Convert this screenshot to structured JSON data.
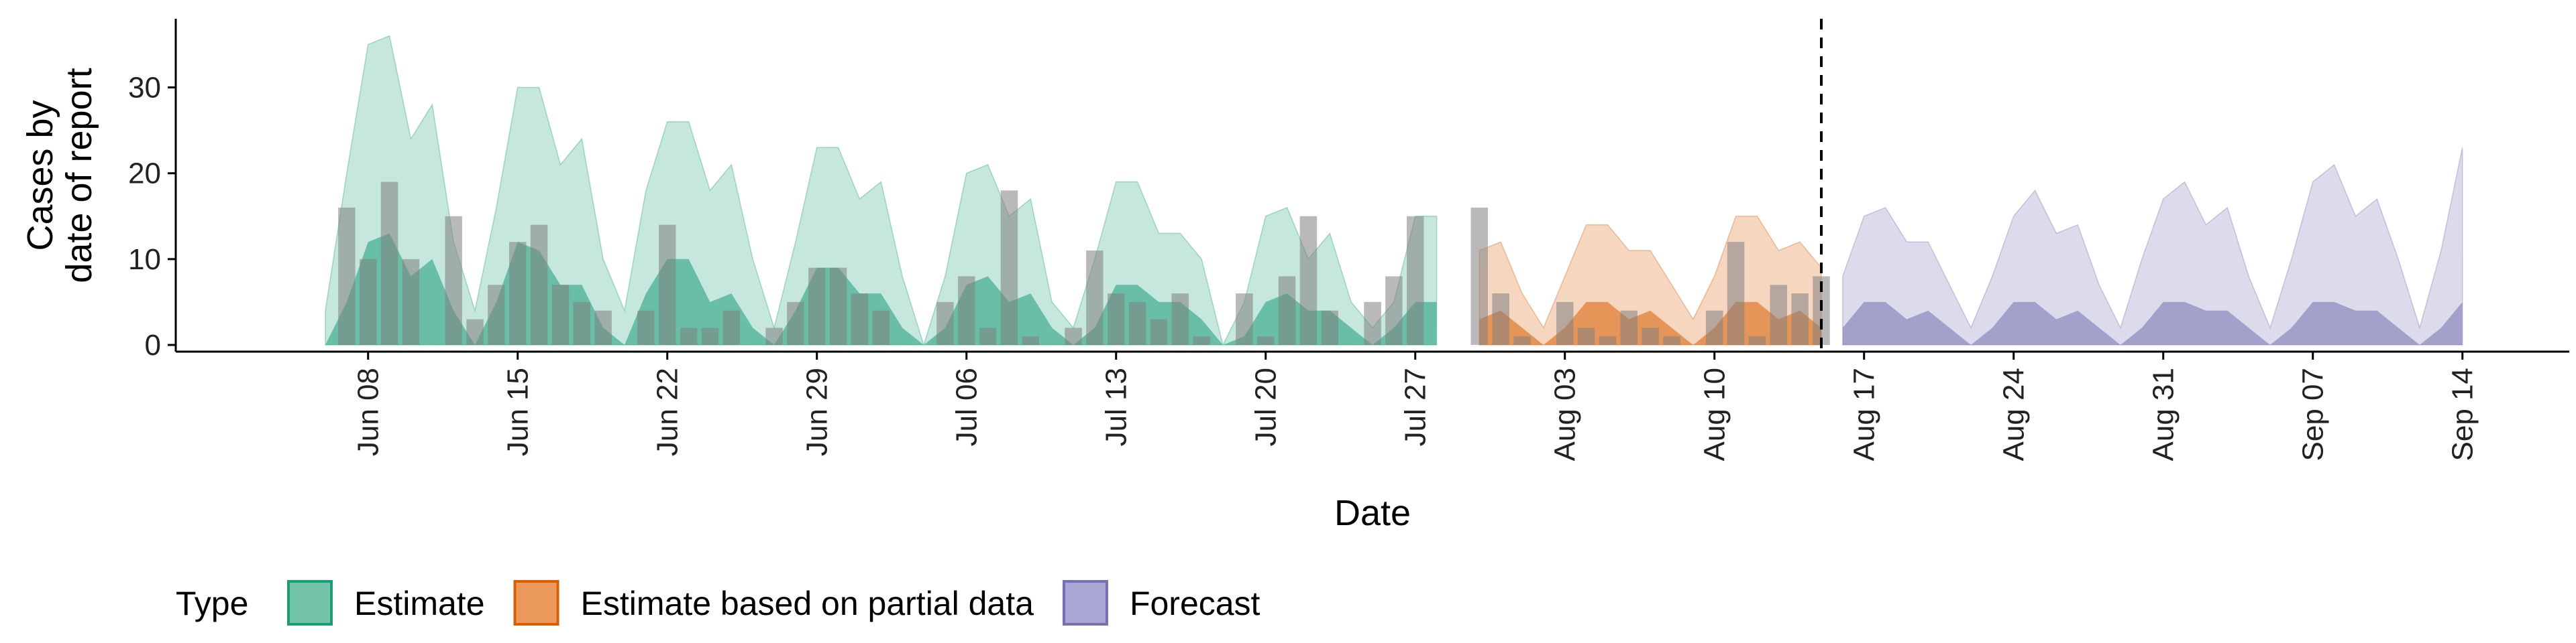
{
  "chart_data": {
    "type": "area",
    "xlabel": "Date",
    "ylabel": [
      "Cases by",
      "date of report"
    ],
    "ylim": [
      0,
      38
    ],
    "y_ticks": [
      0,
      10,
      20,
      30
    ],
    "x_ticks": [
      {
        "date": "2020-06-08",
        "label": "Jun 08"
      },
      {
        "date": "2020-06-15",
        "label": "Jun 15"
      },
      {
        "date": "2020-06-22",
        "label": "Jun 22"
      },
      {
        "date": "2020-06-29",
        "label": "Jun 29"
      },
      {
        "date": "2020-07-06",
        "label": "Jul 06"
      },
      {
        "date": "2020-07-13",
        "label": "Jul 13"
      },
      {
        "date": "2020-07-20",
        "label": "Jul 20"
      },
      {
        "date": "2020-07-27",
        "label": "Jul 27"
      },
      {
        "date": "2020-08-03",
        "label": "Aug 03"
      },
      {
        "date": "2020-08-10",
        "label": "Aug 10"
      },
      {
        "date": "2020-08-17",
        "label": "Aug 17"
      },
      {
        "date": "2020-08-24",
        "label": "Aug 24"
      },
      {
        "date": "2020-08-31",
        "label": "Aug 31"
      },
      {
        "date": "2020-09-07",
        "label": "Sep 07"
      },
      {
        "date": "2020-09-14",
        "label": "Sep 14"
      }
    ],
    "xlim": [
      "2020-05-30",
      "2020-09-19"
    ],
    "vline_date": "2020-08-15",
    "grid": false,
    "legend_position": "bottom",
    "legend_title": "Type",
    "colors": {
      "Estimate": "#1b9e77",
      "Estimate based on partial data": "#d95f02",
      "Forecast": "#7570b3",
      "bars": "#7f7f7f"
    },
    "legend": [
      {
        "label": "Estimate",
        "fill": "#73c4a8",
        "stroke": "#1b9e77"
      },
      {
        "label": "Estimate based on partial data",
        "fill": "#ec9a5c",
        "stroke": "#d95f02"
      },
      {
        "label": "Forecast",
        "fill": "#aaa7d4",
        "stroke": "#7570b3"
      }
    ],
    "series": [
      {
        "name": "Estimate",
        "start_date": "2020-06-06",
        "upper": [
          4,
          20,
          35,
          36,
          24,
          28,
          12,
          4,
          16,
          30,
          30,
          21,
          24,
          10,
          4,
          18,
          26,
          26,
          18,
          21,
          10,
          2,
          12,
          23,
          23,
          17,
          19,
          8,
          0,
          8,
          20,
          21,
          15,
          17,
          5,
          2,
          10,
          19,
          19,
          13,
          13,
          10,
          0,
          5,
          15,
          16,
          10,
          13,
          5,
          2,
          5,
          15,
          15
        ],
        "lower": [
          0,
          5,
          12,
          13,
          8,
          10,
          4,
          0,
          5,
          12,
          11,
          7,
          7,
          2,
          0,
          6,
          10,
          10,
          5,
          6,
          2,
          0,
          4,
          9,
          9,
          6,
          6,
          2,
          0,
          2,
          7,
          8,
          5,
          6,
          2,
          0,
          2,
          7,
          7,
          5,
          5,
          3,
          0,
          1,
          5,
          6,
          4,
          4,
          2,
          0,
          2,
          5,
          5
        ]
      },
      {
        "name": "Estimate based on partial data",
        "start_date": "2020-07-30",
        "upper": [
          11,
          12,
          6,
          2,
          8,
          14,
          14,
          11,
          11,
          7,
          3,
          8,
          15,
          15,
          11,
          12,
          9
        ],
        "lower": [
          3,
          4,
          2,
          0,
          2,
          5,
          5,
          3,
          4,
          2,
          0,
          2,
          5,
          5,
          3,
          4,
          2
        ]
      },
      {
        "name": "Forecast",
        "start_date": "2020-08-16",
        "upper": [
          8,
          15,
          16,
          12,
          12,
          7,
          2,
          8,
          15,
          18,
          13,
          14,
          7,
          2,
          10,
          17,
          19,
          14,
          16,
          8,
          2,
          10,
          19,
          21,
          15,
          17,
          10,
          2,
          11,
          23
        ],
        "lower": [
          2,
          5,
          5,
          3,
          4,
          2,
          0,
          2,
          5,
          5,
          3,
          4,
          2,
          0,
          2,
          5,
          5,
          4,
          4,
          2,
          0,
          2,
          5,
          5,
          4,
          4,
          2,
          0,
          2,
          5
        ]
      }
    ],
    "reported_cases": {
      "start_date": "2020-06-06",
      "values": [
        0,
        16,
        10,
        19,
        10,
        0,
        15,
        3,
        7,
        12,
        14,
        7,
        5,
        4,
        0,
        4,
        14,
        2,
        2,
        4,
        0,
        2,
        5,
        9,
        9,
        6,
        4,
        0,
        0,
        5,
        8,
        2,
        18,
        1,
        0,
        2,
        11,
        6,
        5,
        3,
        6,
        1,
        0,
        6,
        1,
        8,
        15,
        4,
        0,
        5,
        8,
        15,
        0,
        0,
        16,
        6,
        1,
        0,
        5,
        2,
        1,
        4,
        2,
        1,
        0,
        4,
        12,
        1,
        7,
        6,
        8
      ]
    }
  }
}
